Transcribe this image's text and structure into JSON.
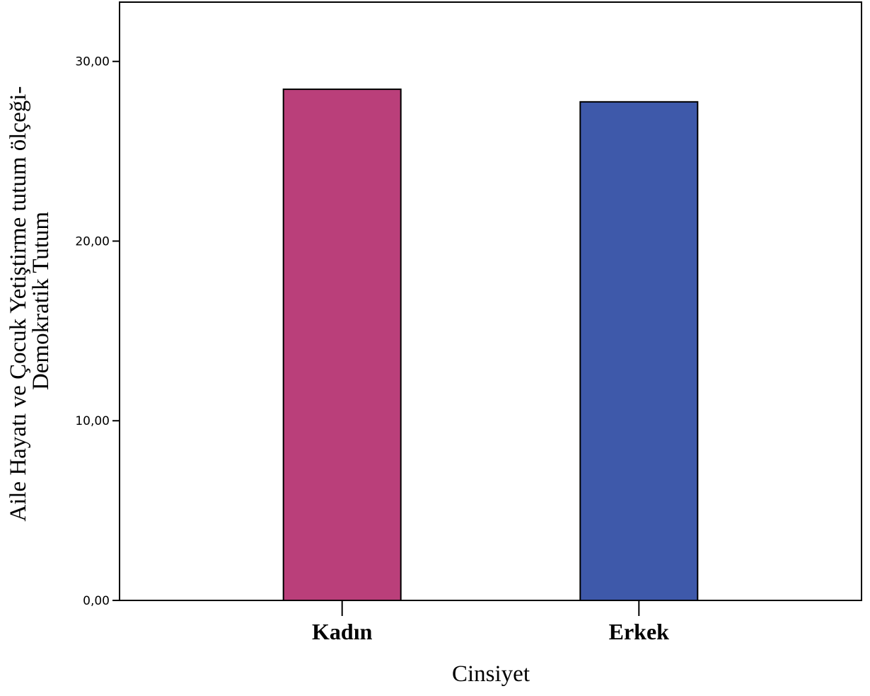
{
  "chart_data": {
    "type": "bar",
    "categories": [
      "Kadın",
      "Erkek"
    ],
    "values": [
      28.45,
      27.75
    ],
    "colors": [
      "#ba3f7a",
      "#3e59aa"
    ],
    "xlabel": "Cinsiyet",
    "ylabel_lines": [
      "Aile Hayatı ve Çocuk Yetiştirme tutum ölçeği-",
      "Demokratik Tutum"
    ],
    "yticks": [
      0,
      10,
      20,
      30
    ],
    "ytick_labels": [
      "0,00",
      "10,00",
      "20,00",
      "30,00"
    ],
    "ylim": [
      0,
      33.3
    ],
    "grid": false,
    "legend": "none"
  }
}
